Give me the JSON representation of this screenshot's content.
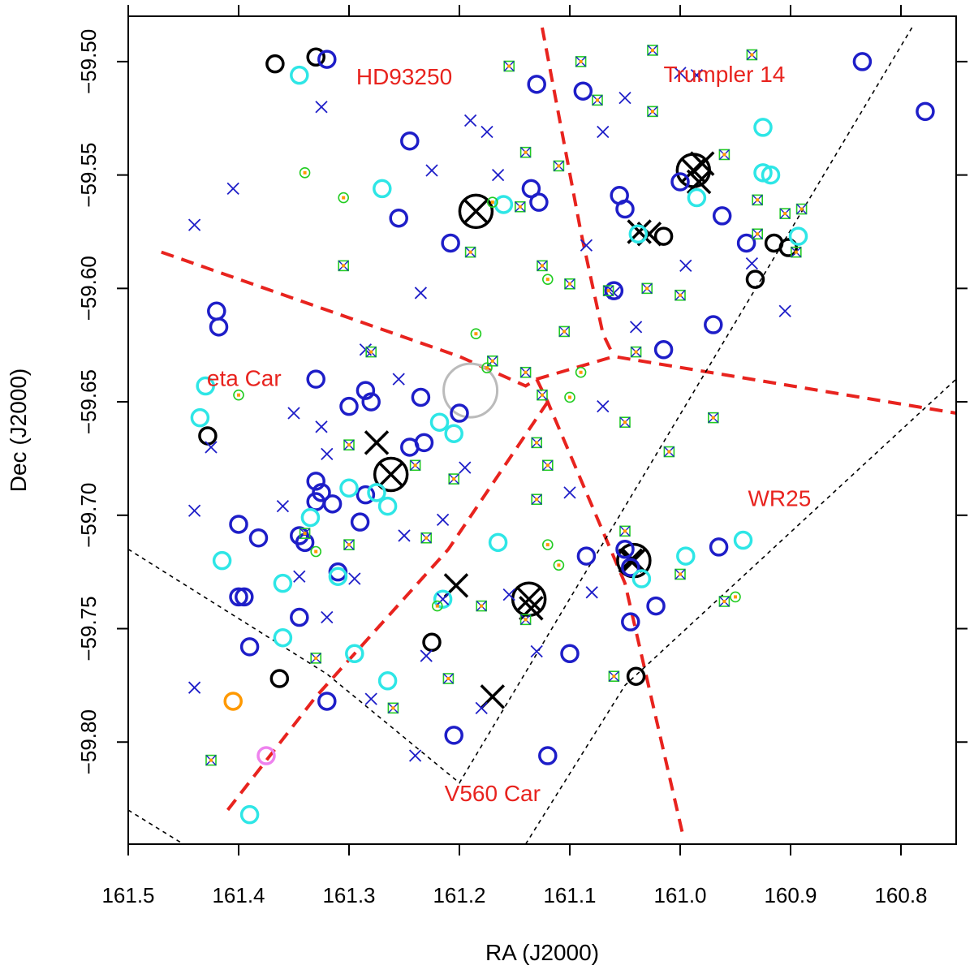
{
  "chart_data": {
    "type": "scatter",
    "xlabel": "RA (J2000)",
    "ylabel": "Dec (J2000)",
    "xlim": [
      161.5,
      160.75
    ],
    "ylim": [
      -59.845,
      -59.48
    ],
    "x_ticks": [
      161.5,
      161.4,
      161.3,
      161.2,
      161.1,
      161.0,
      160.9,
      160.8
    ],
    "x_tick_labels": [
      "161.5",
      "161.4",
      "161.3",
      "161.2",
      "161.1",
      "161.0",
      "160.9",
      "160.8"
    ],
    "y_ticks": [
      -59.5,
      -59.55,
      -59.6,
      -59.65,
      -59.7,
      -59.75,
      -59.8
    ],
    "y_tick_labels": [
      "−59.50",
      "−59.55",
      "−59.60",
      "−59.65",
      "−59.70",
      "−59.75",
      "−59.80"
    ],
    "grid": false,
    "colors": {
      "red": "#e8231e",
      "blue": "#1e1ec8",
      "cyan": "#2ee6e6",
      "green": "#22cc22",
      "orange": "#ff9900",
      "black": "#000000",
      "gray": "#bbbbbb",
      "violet": "#ee82ee"
    },
    "annotations": [
      {
        "text": "HD93250",
        "x": 161.25,
        "y": -59.51
      },
      {
        "text": "Trumpler 14",
        "x": 160.96,
        "y": -59.509
      },
      {
        "text": "eta Car",
        "x": 161.395,
        "y": -59.643
      },
      {
        "text": "WR25",
        "x": 160.91,
        "y": -59.696
      },
      {
        "text": "V560 Car",
        "x": 161.17,
        "y": -59.826
      }
    ],
    "boundaries_red_dashed": [
      [
        [
          161.47,
          -59.584
        ],
        [
          161.2,
          -59.63
        ],
        [
          161.14,
          -59.643
        ],
        [
          161.13,
          -59.64
        ],
        [
          161.06,
          -59.63
        ],
        [
          160.75,
          -59.655
        ]
      ],
      [
        [
          161.125,
          -59.485
        ],
        [
          161.09,
          -59.575
        ],
        [
          161.07,
          -59.62
        ],
        [
          161.06,
          -59.63
        ]
      ],
      [
        [
          161.13,
          -59.64
        ],
        [
          161.12,
          -59.65
        ],
        [
          161.05,
          -59.73
        ],
        [
          160.998,
          -59.84
        ]
      ],
      [
        [
          161.12,
          -59.65
        ],
        [
          161.21,
          -59.715
        ],
        [
          161.33,
          -59.78
        ],
        [
          161.41,
          -59.83
        ]
      ]
    ],
    "boundaries_black_dashed": [
      [
        [
          161.5,
          -59.715
        ],
        [
          161.32,
          -59.77
        ],
        [
          161.2,
          -59.818
        ],
        [
          160.79,
          -59.485
        ]
      ],
      [
        [
          161.5,
          -59.83
        ],
        [
          161.45,
          -59.845
        ]
      ],
      [
        [
          161.14,
          -59.845
        ],
        [
          161.05,
          -59.775
        ],
        [
          160.75,
          -59.64
        ]
      ]
    ],
    "series": [
      {
        "marker": "gray-circle",
        "points": [
          [
            161.19,
            -59.645
          ]
        ]
      },
      {
        "marker": "black-large-circle-cross",
        "points": [
          [
            161.185,
            -59.566
          ],
          [
            160.988,
            -59.548
          ],
          [
            161.262,
            -59.682
          ],
          [
            161.137,
            -59.737
          ],
          [
            161.042,
            -59.72
          ]
        ]
      },
      {
        "marker": "black-cross",
        "points": [
          [
            161.037,
            -59.575
          ],
          [
            161.028,
            -59.576
          ],
          [
            160.983,
            -59.553
          ],
          [
            160.98,
            -59.545
          ],
          [
            161.275,
            -59.668
          ],
          [
            161.203,
            -59.731
          ],
          [
            161.17,
            -59.78
          ],
          [
            161.135,
            -59.741
          ],
          [
            161.045,
            -59.72
          ]
        ]
      },
      {
        "marker": "black-circle",
        "points": [
          [
            161.367,
            -59.501
          ],
          [
            161.33,
            -59.498
          ],
          [
            161.015,
            -59.577
          ],
          [
            160.915,
            -59.58
          ],
          [
            160.902,
            -59.582
          ],
          [
            160.932,
            -59.596
          ],
          [
            161.428,
            -59.665
          ],
          [
            161.363,
            -59.772
          ],
          [
            161.225,
            -59.756
          ],
          [
            161.04,
            -59.771
          ]
        ]
      },
      {
        "marker": "blue-circle",
        "points": [
          [
            161.32,
            -59.499
          ],
          [
            161.13,
            -59.51
          ],
          [
            161.088,
            -59.513
          ],
          [
            160.835,
            -59.5
          ],
          [
            160.778,
            -59.522
          ],
          [
            161.245,
            -59.535
          ],
          [
            161.135,
            -59.556
          ],
          [
            161.128,
            -59.562
          ],
          [
            161.255,
            -59.569
          ],
          [
            161.208,
            -59.58
          ],
          [
            161.055,
            -59.559
          ],
          [
            161.05,
            -59.565
          ],
          [
            161.0,
            -59.553
          ],
          [
            160.962,
            -59.568
          ],
          [
            161.06,
            -59.601
          ],
          [
            161.42,
            -59.61
          ],
          [
            161.418,
            -59.617
          ],
          [
            160.97,
            -59.616
          ],
          [
            161.015,
            -59.627
          ],
          [
            161.33,
            -59.64
          ],
          [
            161.3,
            -59.652
          ],
          [
            161.285,
            -59.645
          ],
          [
            161.28,
            -59.65
          ],
          [
            161.235,
            -59.648
          ],
          [
            161.2,
            -59.655
          ],
          [
            161.245,
            -59.67
          ],
          [
            161.232,
            -59.668
          ],
          [
            161.285,
            -59.691
          ],
          [
            161.33,
            -59.685
          ],
          [
            161.325,
            -59.69
          ],
          [
            161.33,
            -59.694
          ],
          [
            161.315,
            -59.695
          ],
          [
            161.29,
            -59.703
          ],
          [
            161.4,
            -59.704
          ],
          [
            161.382,
            -59.71
          ],
          [
            161.345,
            -59.709
          ],
          [
            161.34,
            -59.712
          ],
          [
            161.31,
            -59.725
          ],
          [
            161.4,
            -59.736
          ],
          [
            161.395,
            -59.736
          ],
          [
            161.345,
            -59.745
          ],
          [
            161.39,
            -59.758
          ],
          [
            161.32,
            -59.782
          ],
          [
            161.205,
            -59.797
          ],
          [
            161.12,
            -59.806
          ],
          [
            161.1,
            -59.761
          ],
          [
            161.085,
            -59.718
          ],
          [
            161.05,
            -59.715
          ],
          [
            161.045,
            -59.723
          ],
          [
            161.022,
            -59.74
          ],
          [
            161.045,
            -59.747
          ],
          [
            160.965,
            -59.714
          ],
          [
            160.94,
            -59.58
          ]
        ]
      },
      {
        "marker": "cyan-circle",
        "points": [
          [
            161.345,
            -59.506
          ],
          [
            160.925,
            -59.529
          ],
          [
            161.27,
            -59.556
          ],
          [
            161.16,
            -59.563
          ],
          [
            160.925,
            -59.549
          ],
          [
            160.918,
            -59.55
          ],
          [
            160.893,
            -59.577
          ],
          [
            161.038,
            -59.576
          ],
          [
            160.985,
            -59.56
          ],
          [
            161.43,
            -59.643
          ],
          [
            161.435,
            -59.657
          ],
          [
            161.218,
            -59.659
          ],
          [
            161.205,
            -59.664
          ],
          [
            161.3,
            -59.688
          ],
          [
            161.275,
            -59.69
          ],
          [
            161.265,
            -59.696
          ],
          [
            161.335,
            -59.701
          ],
          [
            161.415,
            -59.72
          ],
          [
            161.36,
            -59.73
          ],
          [
            161.31,
            -59.727
          ],
          [
            161.36,
            -59.754
          ],
          [
            161.295,
            -59.761
          ],
          [
            161.265,
            -59.773
          ],
          [
            161.215,
            -59.737
          ],
          [
            161.165,
            -59.712
          ],
          [
            161.035,
            -59.728
          ],
          [
            160.995,
            -59.718
          ],
          [
            160.943,
            -59.711
          ],
          [
            161.39,
            -59.832
          ]
        ]
      },
      {
        "marker": "orange-circle",
        "points": [
          [
            161.405,
            -59.782
          ]
        ]
      },
      {
        "marker": "violet-circle",
        "points": [
          [
            161.375,
            -59.806
          ]
        ]
      },
      {
        "marker": "blue-cross",
        "points": [
          [
            161.44,
            -59.572
          ],
          [
            161.405,
            -59.556
          ],
          [
            161.325,
            -59.52
          ],
          [
            161.175,
            -59.531
          ],
          [
            161.19,
            -59.526
          ],
          [
            161.225,
            -59.548
          ],
          [
            161.165,
            -59.55
          ],
          [
            161.07,
            -59.531
          ],
          [
            161.05,
            -59.516
          ],
          [
            161.0,
            -59.505
          ],
          [
            160.985,
            -59.506
          ],
          [
            161.085,
            -59.581
          ],
          [
            161.06,
            -59.602
          ],
          [
            160.995,
            -59.59
          ],
          [
            160.935,
            -59.589
          ],
          [
            160.905,
            -59.61
          ],
          [
            161.235,
            -59.602
          ],
          [
            161.325,
            -59.661
          ],
          [
            161.35,
            -59.655
          ],
          [
            161.32,
            -59.673
          ],
          [
            161.425,
            -59.67
          ],
          [
            161.285,
            -59.627
          ],
          [
            161.255,
            -59.64
          ],
          [
            161.195,
            -59.679
          ],
          [
            161.215,
            -59.702
          ],
          [
            161.25,
            -59.709
          ],
          [
            161.215,
            -59.737
          ],
          [
            161.155,
            -59.735
          ],
          [
            161.1,
            -59.69
          ],
          [
            161.07,
            -59.652
          ],
          [
            161.08,
            -59.734
          ],
          [
            161.13,
            -59.76
          ],
          [
            161.18,
            -59.785
          ],
          [
            161.24,
            -59.806
          ],
          [
            161.28,
            -59.781
          ],
          [
            161.32,
            -59.745
          ],
          [
            161.36,
            -59.696
          ],
          [
            161.44,
            -59.698
          ],
          [
            161.44,
            -59.776
          ],
          [
            161.295,
            -59.728
          ],
          [
            161.345,
            -59.727
          ],
          [
            161.23,
            -59.762
          ],
          [
            161.04,
            -59.617
          ]
        ]
      },
      {
        "marker": "green-square-cross",
        "points": [
          [
            161.09,
            -59.5
          ],
          [
            160.935,
            -59.497
          ],
          [
            161.025,
            -59.495
          ],
          [
            161.155,
            -59.502
          ],
          [
            161.075,
            -59.517
          ],
          [
            161.025,
            -59.522
          ],
          [
            161.14,
            -59.54
          ],
          [
            161.11,
            -59.546
          ],
          [
            160.96,
            -59.541
          ],
          [
            160.93,
            -59.561
          ],
          [
            160.89,
            -59.565
          ],
          [
            161.145,
            -59.564
          ],
          [
            160.93,
            -59.576
          ],
          [
            161.125,
            -59.59
          ],
          [
            161.19,
            -59.584
          ],
          [
            161.305,
            -59.59
          ],
          [
            161.065,
            -59.601
          ],
          [
            161.03,
            -59.6
          ],
          [
            161.0,
            -59.603
          ],
          [
            161.1,
            -59.598
          ],
          [
            161.105,
            -59.619
          ],
          [
            161.04,
            -59.628
          ],
          [
            161.17,
            -59.632
          ],
          [
            161.14,
            -59.637
          ],
          [
            161.125,
            -59.647
          ],
          [
            161.05,
            -59.659
          ],
          [
            161.28,
            -59.628
          ],
          [
            161.3,
            -59.669
          ],
          [
            161.24,
            -59.678
          ],
          [
            161.205,
            -59.684
          ],
          [
            161.13,
            -59.668
          ],
          [
            161.12,
            -59.678
          ],
          [
            161.01,
            -59.672
          ],
          [
            160.97,
            -59.657
          ],
          [
            161.34,
            -59.708
          ],
          [
            161.3,
            -59.713
          ],
          [
            161.23,
            -59.71
          ],
          [
            161.13,
            -59.693
          ],
          [
            161.05,
            -59.707
          ],
          [
            161.18,
            -59.74
          ],
          [
            161.14,
            -59.746
          ],
          [
            161.21,
            -59.772
          ],
          [
            161.26,
            -59.785
          ],
          [
            161.33,
            -59.763
          ],
          [
            161.425,
            -59.808
          ],
          [
            161.06,
            -59.771
          ],
          [
            161.0,
            -59.726
          ],
          [
            160.96,
            -59.738
          ],
          [
            160.895,
            -59.584
          ],
          [
            160.905,
            -59.567
          ]
        ]
      },
      {
        "marker": "green-circle",
        "points": [
          [
            161.34,
            -59.549
          ],
          [
            161.305,
            -59.56
          ],
          [
            161.17,
            -59.562
          ],
          [
            161.12,
            -59.596
          ],
          [
            161.185,
            -59.62
          ],
          [
            161.175,
            -59.635
          ],
          [
            161.1,
            -59.648
          ],
          [
            161.4,
            -59.647
          ],
          [
            161.12,
            -59.713
          ],
          [
            161.11,
            -59.722
          ],
          [
            160.95,
            -59.736
          ],
          [
            161.33,
            -59.716
          ],
          [
            161.22,
            -59.74
          ],
          [
            161.09,
            -59.637
          ]
        ]
      }
    ]
  }
}
